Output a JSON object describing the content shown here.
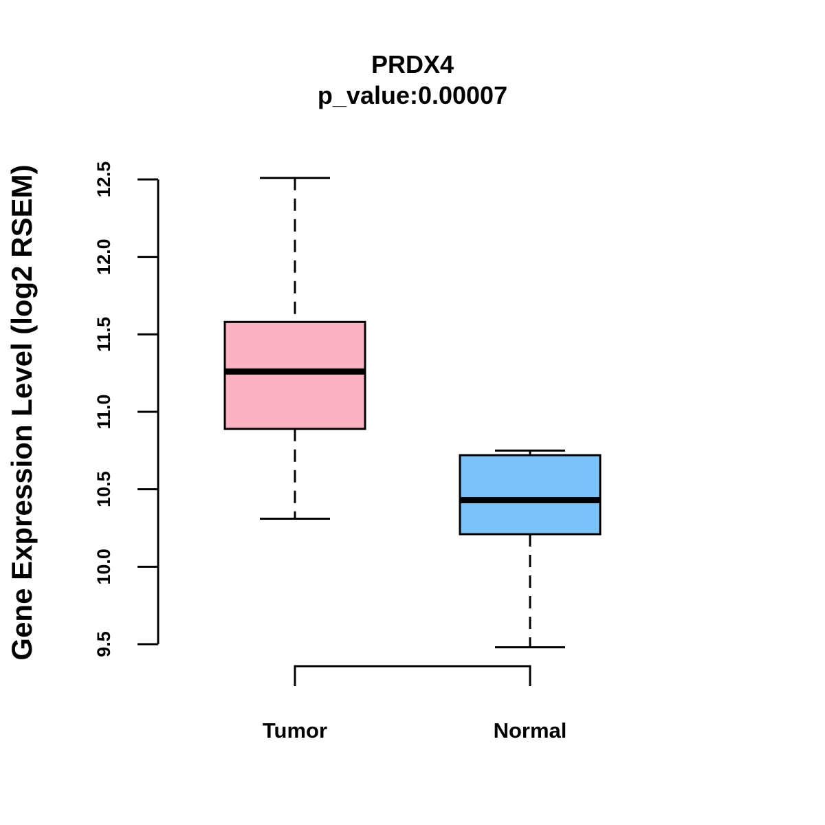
{
  "chart_data": {
    "type": "boxplot",
    "title": "PRDX4",
    "subtitle": "p_value:0.00007",
    "xlabel": "",
    "ylabel": "Gene Expression Level (log2 RSEM)",
    "ylim": [
      9.5,
      12.5
    ],
    "yticks": [
      9.5,
      10.0,
      10.5,
      11.0,
      11.5,
      12.0,
      12.5
    ],
    "ytick_labels": [
      "9.5",
      "10.0",
      "10.5",
      "11.0",
      "11.5",
      "12.0",
      "12.5"
    ],
    "grid": false,
    "categories": [
      "Tumor",
      "Normal"
    ],
    "series": [
      {
        "name": "Tumor",
        "whisker_low": 10.31,
        "q1": 10.89,
        "median": 11.26,
        "q3": 11.58,
        "whisker_high": 12.51,
        "color": "#FDB2C4"
      },
      {
        "name": "Normal",
        "whisker_low": 9.48,
        "q1": 10.21,
        "median": 10.43,
        "q3": 10.72,
        "whisker_high": 10.75,
        "color": "#7AC1F8"
      }
    ],
    "comparison_bracket": {
      "from": "Tumor",
      "to": "Normal"
    }
  }
}
